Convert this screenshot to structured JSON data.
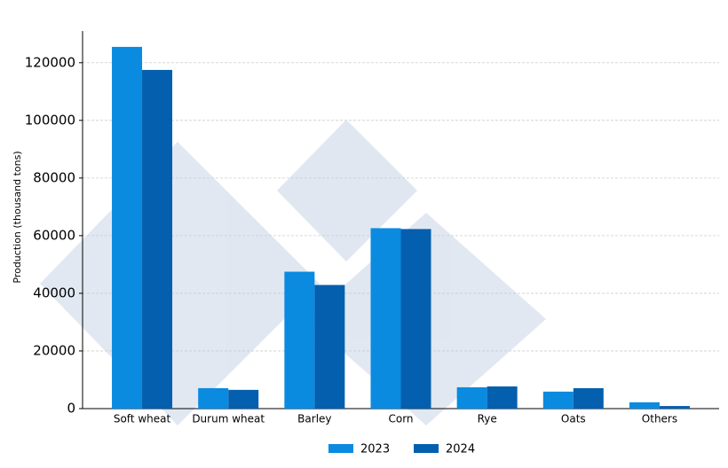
{
  "chart_data": {
    "type": "bar",
    "y_label": "Production (thousand tons)",
    "categories": [
      "Soft wheat",
      "Durum wheat",
      "Barley",
      "Corn",
      "Rye",
      "Oats",
      "Others"
    ],
    "series": [
      {
        "name": "2023",
        "color": "#0a8be0",
        "values": [
          125500,
          7100,
          47500,
          62600,
          7400,
          5900,
          2200
        ]
      },
      {
        "name": "2024",
        "color": "#045fae",
        "values": [
          117500,
          6500,
          42900,
          62300,
          7700,
          7100,
          900
        ]
      }
    ],
    "ylim": [
      0,
      131000
    ],
    "yticks": [
      0,
      20000,
      40000,
      60000,
      80000,
      100000,
      120000
    ],
    "grid": true
  }
}
